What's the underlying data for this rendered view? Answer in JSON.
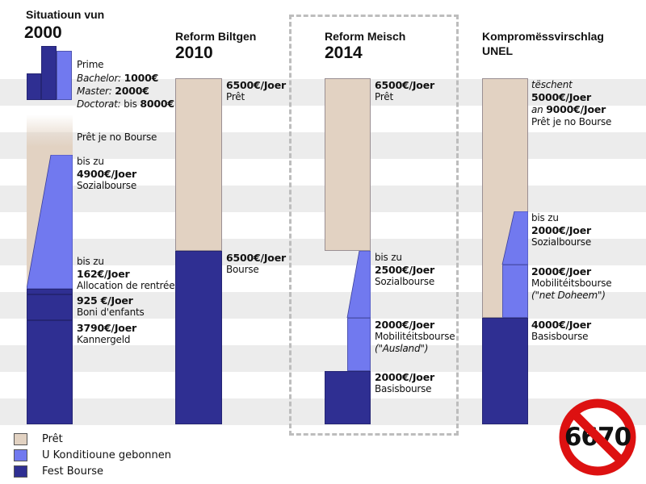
{
  "columns": {
    "c2000": {
      "title": "Situatioun vun",
      "year": "2000"
    },
    "c2010": {
      "title": "Reform Biltgen",
      "year": "2010"
    },
    "c2014": {
      "title": "Reform Meisch",
      "year": "2014"
    },
    "cunel": {
      "title": "Kompromëssvirschlag",
      "year": "UNEL"
    }
  },
  "c2000_labels": {
    "prime": "Prime",
    "bachelor_k": "Bachelor:",
    "bachelor_v": "1000€",
    "master_k": "Master:",
    "master_v": "2000€",
    "doctorat_k": "Doctorat:",
    "doctorat_pre": "bis",
    "doctorat_v": "8000€",
    "pret": "Prêt je no Bourse",
    "sozial_pre": "bis zu",
    "sozial_v": "4900€/Joer",
    "sozial_name": "Sozialbourse",
    "alloc_pre": "bis zu",
    "alloc_v": "162€/Joer",
    "alloc_name": "Allocation de rentrée",
    "boni_v": "925 €/Joer",
    "boni_name": "Boni d'enfants",
    "kanner_v": "3790€/Joer",
    "kanner_name": "Kannergeld"
  },
  "c2010_labels": {
    "pret_v": "6500€/Joer",
    "pret_name": "Prêt",
    "bourse_v": "6500€/Joer",
    "bourse_name": "Bourse"
  },
  "c2014_labels": {
    "pret_v": "6500€/Joer",
    "pret_name": "Prêt",
    "sozial_pre": "bis zu",
    "sozial_v": "2500€/Joer",
    "sozial_name": "Sozialbourse",
    "mob_v": "2000€/Joer",
    "mob_name": "Mobilitéitsbourse",
    "mob_note": "(\"Ausland\")",
    "basis_v": "2000€/Joer",
    "basis_name": "Basisbourse"
  },
  "cunel_labels": {
    "pret_pre": "tëschent",
    "pret_v1": "5000€/Joer",
    "pret_an": "an",
    "pret_v2": "9000€/Joer",
    "pret_name": "Prêt je no Bourse",
    "sozial_pre": "bis zu",
    "sozial_v": "2000€/Joer",
    "sozial_name": "Sozialbourse",
    "mob_v": "2000€/Joer",
    "mob_name": "Mobilitéitsbourse",
    "mob_note": "(\"net Doheem\")",
    "basis_v": "4000€/Joer",
    "basis_name": "Basisbourse"
  },
  "legend": [
    {
      "label": "Prêt",
      "color": "#e2d2c2"
    },
    {
      "label": "U Konditioune gebonnen",
      "color": "#7179ef"
    },
    {
      "label": "Fest Bourse",
      "color": "#2f2f92"
    }
  ],
  "colors": {
    "pret": "#e2d2c2",
    "konditioun": "#7179ef",
    "fest": "#2f2f92",
    "prohibition": "#dd1111"
  },
  "badge": {
    "value": "6670",
    "icon": "prohibition-sign-icon"
  }
}
